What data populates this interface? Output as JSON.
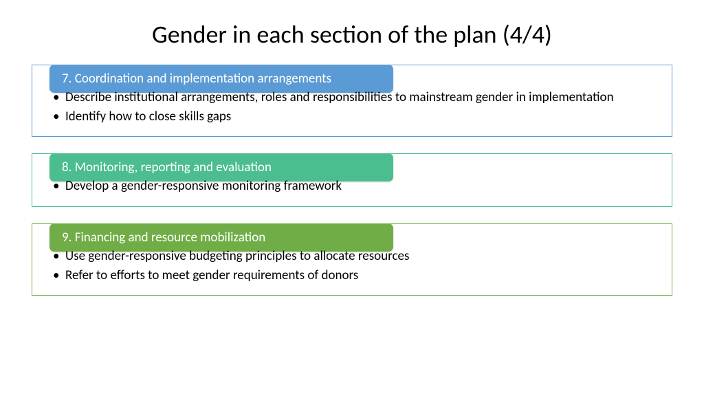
{
  "title": "Gender in each section of the plan (4/4)",
  "sections": [
    {
      "header": "7. Coordination and implementation arrangements",
      "header_bg": "#5b9bd5",
      "border_color": "#5b9bd5",
      "bullets": [
        "Describe institutional arrangements, roles and responsibilities to mainstream gender in implementation",
        "Identify how to close skills gaps"
      ]
    },
    {
      "header": "8. Monitoring, reporting and evaluation",
      "header_bg": "#4bbd8f",
      "border_color": "#4bbd8f",
      "bullets": [
        "Develop a gender-responsive monitoring framework"
      ]
    },
    {
      "header": "9. Financing and resource mobilization",
      "header_bg": "#70ad47",
      "border_color": "#70ad47",
      "bullets": [
        "Use gender-responsive budgeting principles to allocate resources",
        "Refer to efforts to meet gender requirements of donors"
      ]
    }
  ]
}
